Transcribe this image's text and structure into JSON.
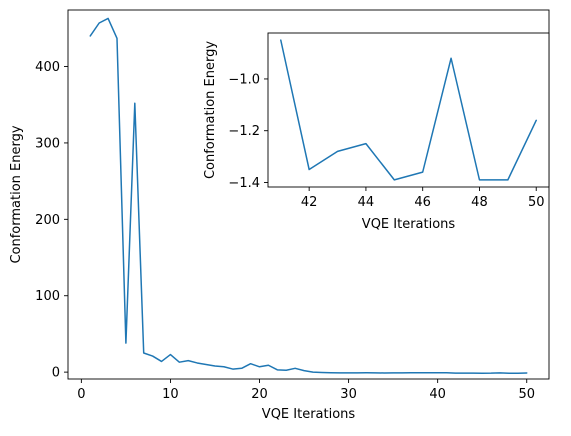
{
  "colors": {
    "line": "#1f77b4",
    "axis": "#000000",
    "background": "#ffffff"
  },
  "chart_data": [
    {
      "type": "line",
      "title": "",
      "xlabel": "VQE Iterations",
      "ylabel": "Conformation Energy",
      "xlim": [
        -1.5,
        52.5
      ],
      "ylim": [
        -9.0,
        474.0
      ],
      "xticks": [
        0,
        10,
        20,
        30,
        40,
        50
      ],
      "xtick_labels": [
        "0",
        "10",
        "20",
        "30",
        "40",
        "50"
      ],
      "yticks": [
        0,
        100,
        200,
        300,
        400
      ],
      "ytick_labels": [
        "0",
        "100",
        "200",
        "300",
        "400"
      ],
      "grid": false,
      "legend": "none",
      "series": [
        {
          "x": [
            1,
            2,
            3,
            4,
            5,
            6,
            7,
            8,
            9,
            10,
            11,
            12,
            13,
            14,
            15,
            16,
            17,
            18,
            19,
            20,
            21,
            22,
            23,
            24,
            25,
            26,
            27,
            28,
            29,
            30,
            31,
            32,
            33,
            34,
            35,
            36,
            37,
            38,
            39,
            40,
            41,
            42,
            43,
            44,
            45,
            46,
            47,
            48,
            49,
            50
          ],
          "y": [
            440,
            457,
            463,
            437,
            38,
            352,
            25,
            21,
            14,
            23,
            13,
            15,
            12,
            10,
            8,
            7,
            4,
            5,
            11,
            7,
            9,
            3,
            2.5,
            5,
            2,
            0,
            -0.5,
            -0.8,
            -1.0,
            -1.0,
            -1.0,
            -0.9,
            -1.0,
            -1.1,
            -1.0,
            -1.0,
            -0.9,
            -0.8,
            -0.8,
            -0.8,
            -0.85,
            -1.35,
            -1.28,
            -1.25,
            -1.39,
            -1.36,
            -0.92,
            -1.39,
            -1.39,
            -1.16
          ]
        }
      ]
    },
    {
      "type": "line",
      "title": "",
      "xlabel": "VQE Iterations",
      "ylabel": "Conformation Energy",
      "xlim": [
        40.55,
        50.45
      ],
      "ylim": [
        -1.4175,
        -0.8225
      ],
      "xticks": [
        42,
        44,
        46,
        48,
        50
      ],
      "xtick_labels": [
        "42",
        "44",
        "46",
        "48",
        "50"
      ],
      "yticks": [
        -1.0,
        -1.2,
        -1.4
      ],
      "ytick_labels": [
        "−1.0",
        "−1.2",
        "−1.4"
      ],
      "grid": false,
      "legend": "none",
      "series": [
        {
          "x": [
            41,
            42,
            43,
            44,
            45,
            46,
            47,
            48,
            49,
            50
          ],
          "y": [
            -0.85,
            -1.35,
            -1.28,
            -1.25,
            -1.39,
            -1.36,
            -0.92,
            -1.39,
            -1.39,
            -1.16
          ]
        }
      ]
    }
  ]
}
